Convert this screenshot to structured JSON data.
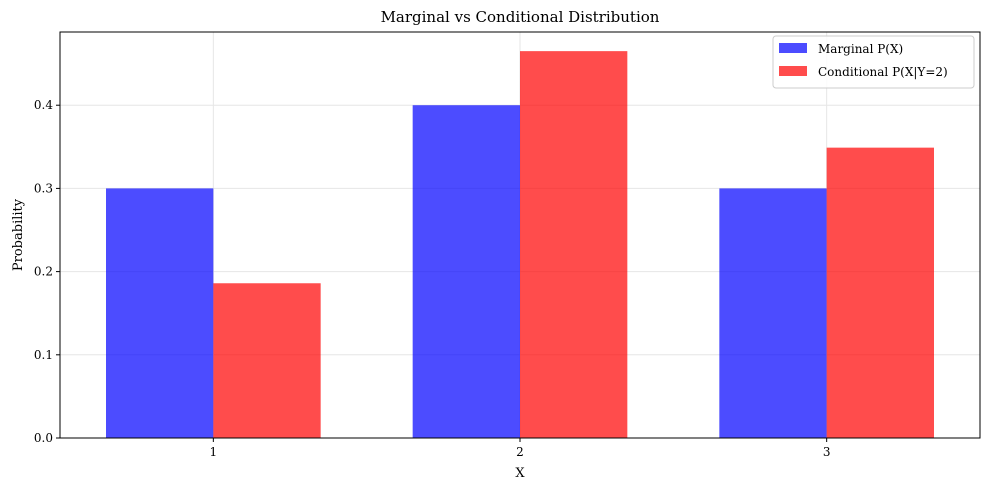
{
  "colors": {
    "marginal": "#0000ff",
    "conditional": "#ff0000",
    "bar_opacity": 0.7,
    "grid": "#e6e6e6",
    "axis": "#000000"
  },
  "chart_data": {
    "type": "bar",
    "title": "Marginal vs Conditional Distribution",
    "xlabel": "X",
    "ylabel": "Probability",
    "categories": [
      "1",
      "2",
      "3"
    ],
    "series": [
      {
        "name": "Marginal P(X)",
        "values": [
          0.3,
          0.4,
          0.3
        ],
        "color": "#0000ff"
      },
      {
        "name": "Conditional P(X|Y=2)",
        "values": [
          0.186,
          0.465,
          0.349
        ],
        "color": "#ff0000"
      }
    ],
    "ylim": [
      0,
      0.488
    ],
    "yticks": [
      0.0,
      0.1,
      0.2,
      0.3,
      0.4
    ],
    "ytick_labels": [
      "0.0",
      "0.1",
      "0.2",
      "0.3",
      "0.4"
    ],
    "grid": true,
    "legend_position": "top-right"
  }
}
